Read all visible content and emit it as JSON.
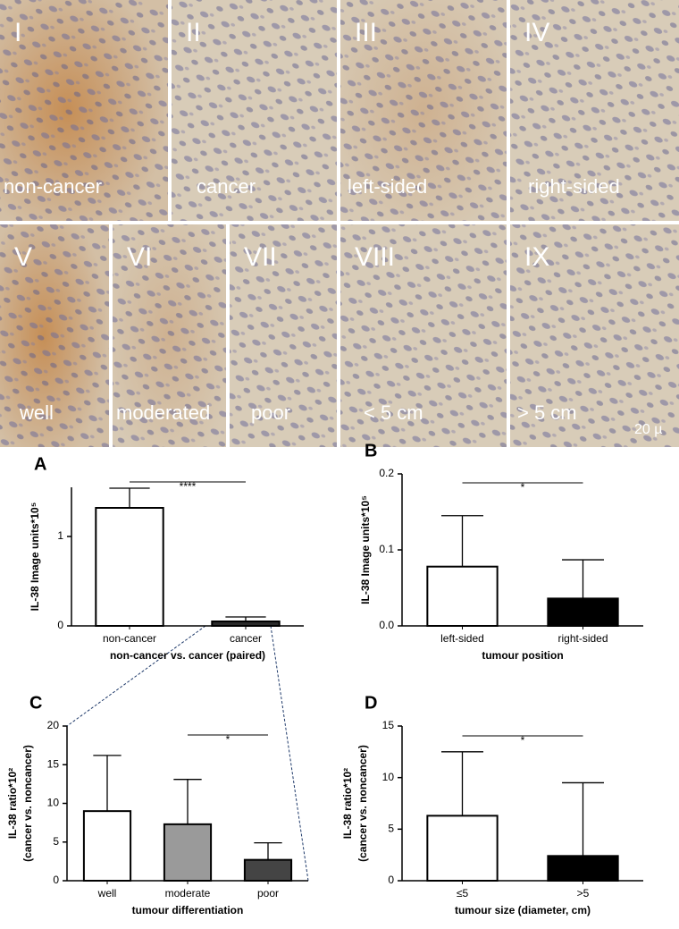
{
  "panels": [
    {
      "numeral": "I",
      "caption": "non-cancer"
    },
    {
      "numeral": "II",
      "caption": "cancer"
    },
    {
      "numeral": "III",
      "caption": "left-sided"
    },
    {
      "numeral": "IV",
      "caption": "right-sided"
    },
    {
      "numeral": "V",
      "caption": "well"
    },
    {
      "numeral": "VI",
      "caption": "moderated"
    },
    {
      "numeral": "VII",
      "caption": "poor"
    },
    {
      "numeral": "VIII",
      "caption": "< 5 cm"
    },
    {
      "numeral": "IX",
      "caption": "> 5 cm"
    }
  ],
  "scale_label": "20 µ",
  "chart_data": [
    {
      "type": "bar",
      "letter": "A",
      "ylabel": [
        "IL-38 Image units*10⁵"
      ],
      "xlabel": "non-cancer vs. cancer (paired)",
      "categories": [
        "non-cancer",
        "cancer"
      ],
      "values": [
        1.32,
        0.05
      ],
      "errors": [
        0.22,
        0.05
      ],
      "colors": [
        "#ffffff",
        "#2a2a2a"
      ],
      "ylim": [
        0,
        1.55
      ],
      "yticks": [
        0,
        1
      ],
      "significance": {
        "text": "****",
        "from": 0,
        "to": 1
      }
    },
    {
      "type": "bar",
      "letter": "B",
      "ylabel": [
        "IL-38 Image units*10⁵"
      ],
      "xlabel": "tumour position",
      "categories": [
        "left-sided",
        "right-sided"
      ],
      "values": [
        0.078,
        0.036
      ],
      "errors": [
        0.067,
        0.051
      ],
      "colors": [
        "#ffffff",
        "#000000"
      ],
      "ylim": [
        0,
        0.2
      ],
      "yticks": [
        {
          "value": 0,
          "label": "0.0"
        },
        0.1,
        0.2
      ],
      "significance": {
        "text": "*",
        "from": 0,
        "to": 1
      }
    },
    {
      "type": "bar",
      "letter": "C",
      "ylabel": [
        "IL-38 ratio*10²",
        "(cancer vs. noncancer)"
      ],
      "xlabel": "tumour differentiation",
      "categories": [
        "well",
        "moderate",
        "poor"
      ],
      "values": [
        9,
        7.3,
        2.7
      ],
      "errors": [
        7.2,
        5.8,
        2.2
      ],
      "colors": [
        "#ffffff",
        "#9a9a9a",
        "#444444"
      ],
      "ylim": [
        0,
        20
      ],
      "yticks": [
        0,
        5,
        10,
        15,
        20
      ],
      "significance": {
        "text": "*",
        "from": 1,
        "to": 2
      }
    },
    {
      "type": "bar",
      "letter": "D",
      "ylabel": [
        "IL-38 ratio*10²",
        "(cancer vs. noncancer)"
      ],
      "xlabel": "tumour size (diameter, cm)",
      "categories": [
        "≤5",
        ">5"
      ],
      "values": [
        6.3,
        2.4
      ],
      "errors": [
        6.2,
        7.1
      ],
      "colors": [
        "#ffffff",
        "#000000"
      ],
      "ylim": [
        0,
        15
      ],
      "yticks": [
        0,
        5,
        10,
        15
      ],
      "significance": {
        "text": "*",
        "from": 0,
        "to": 1
      }
    }
  ]
}
